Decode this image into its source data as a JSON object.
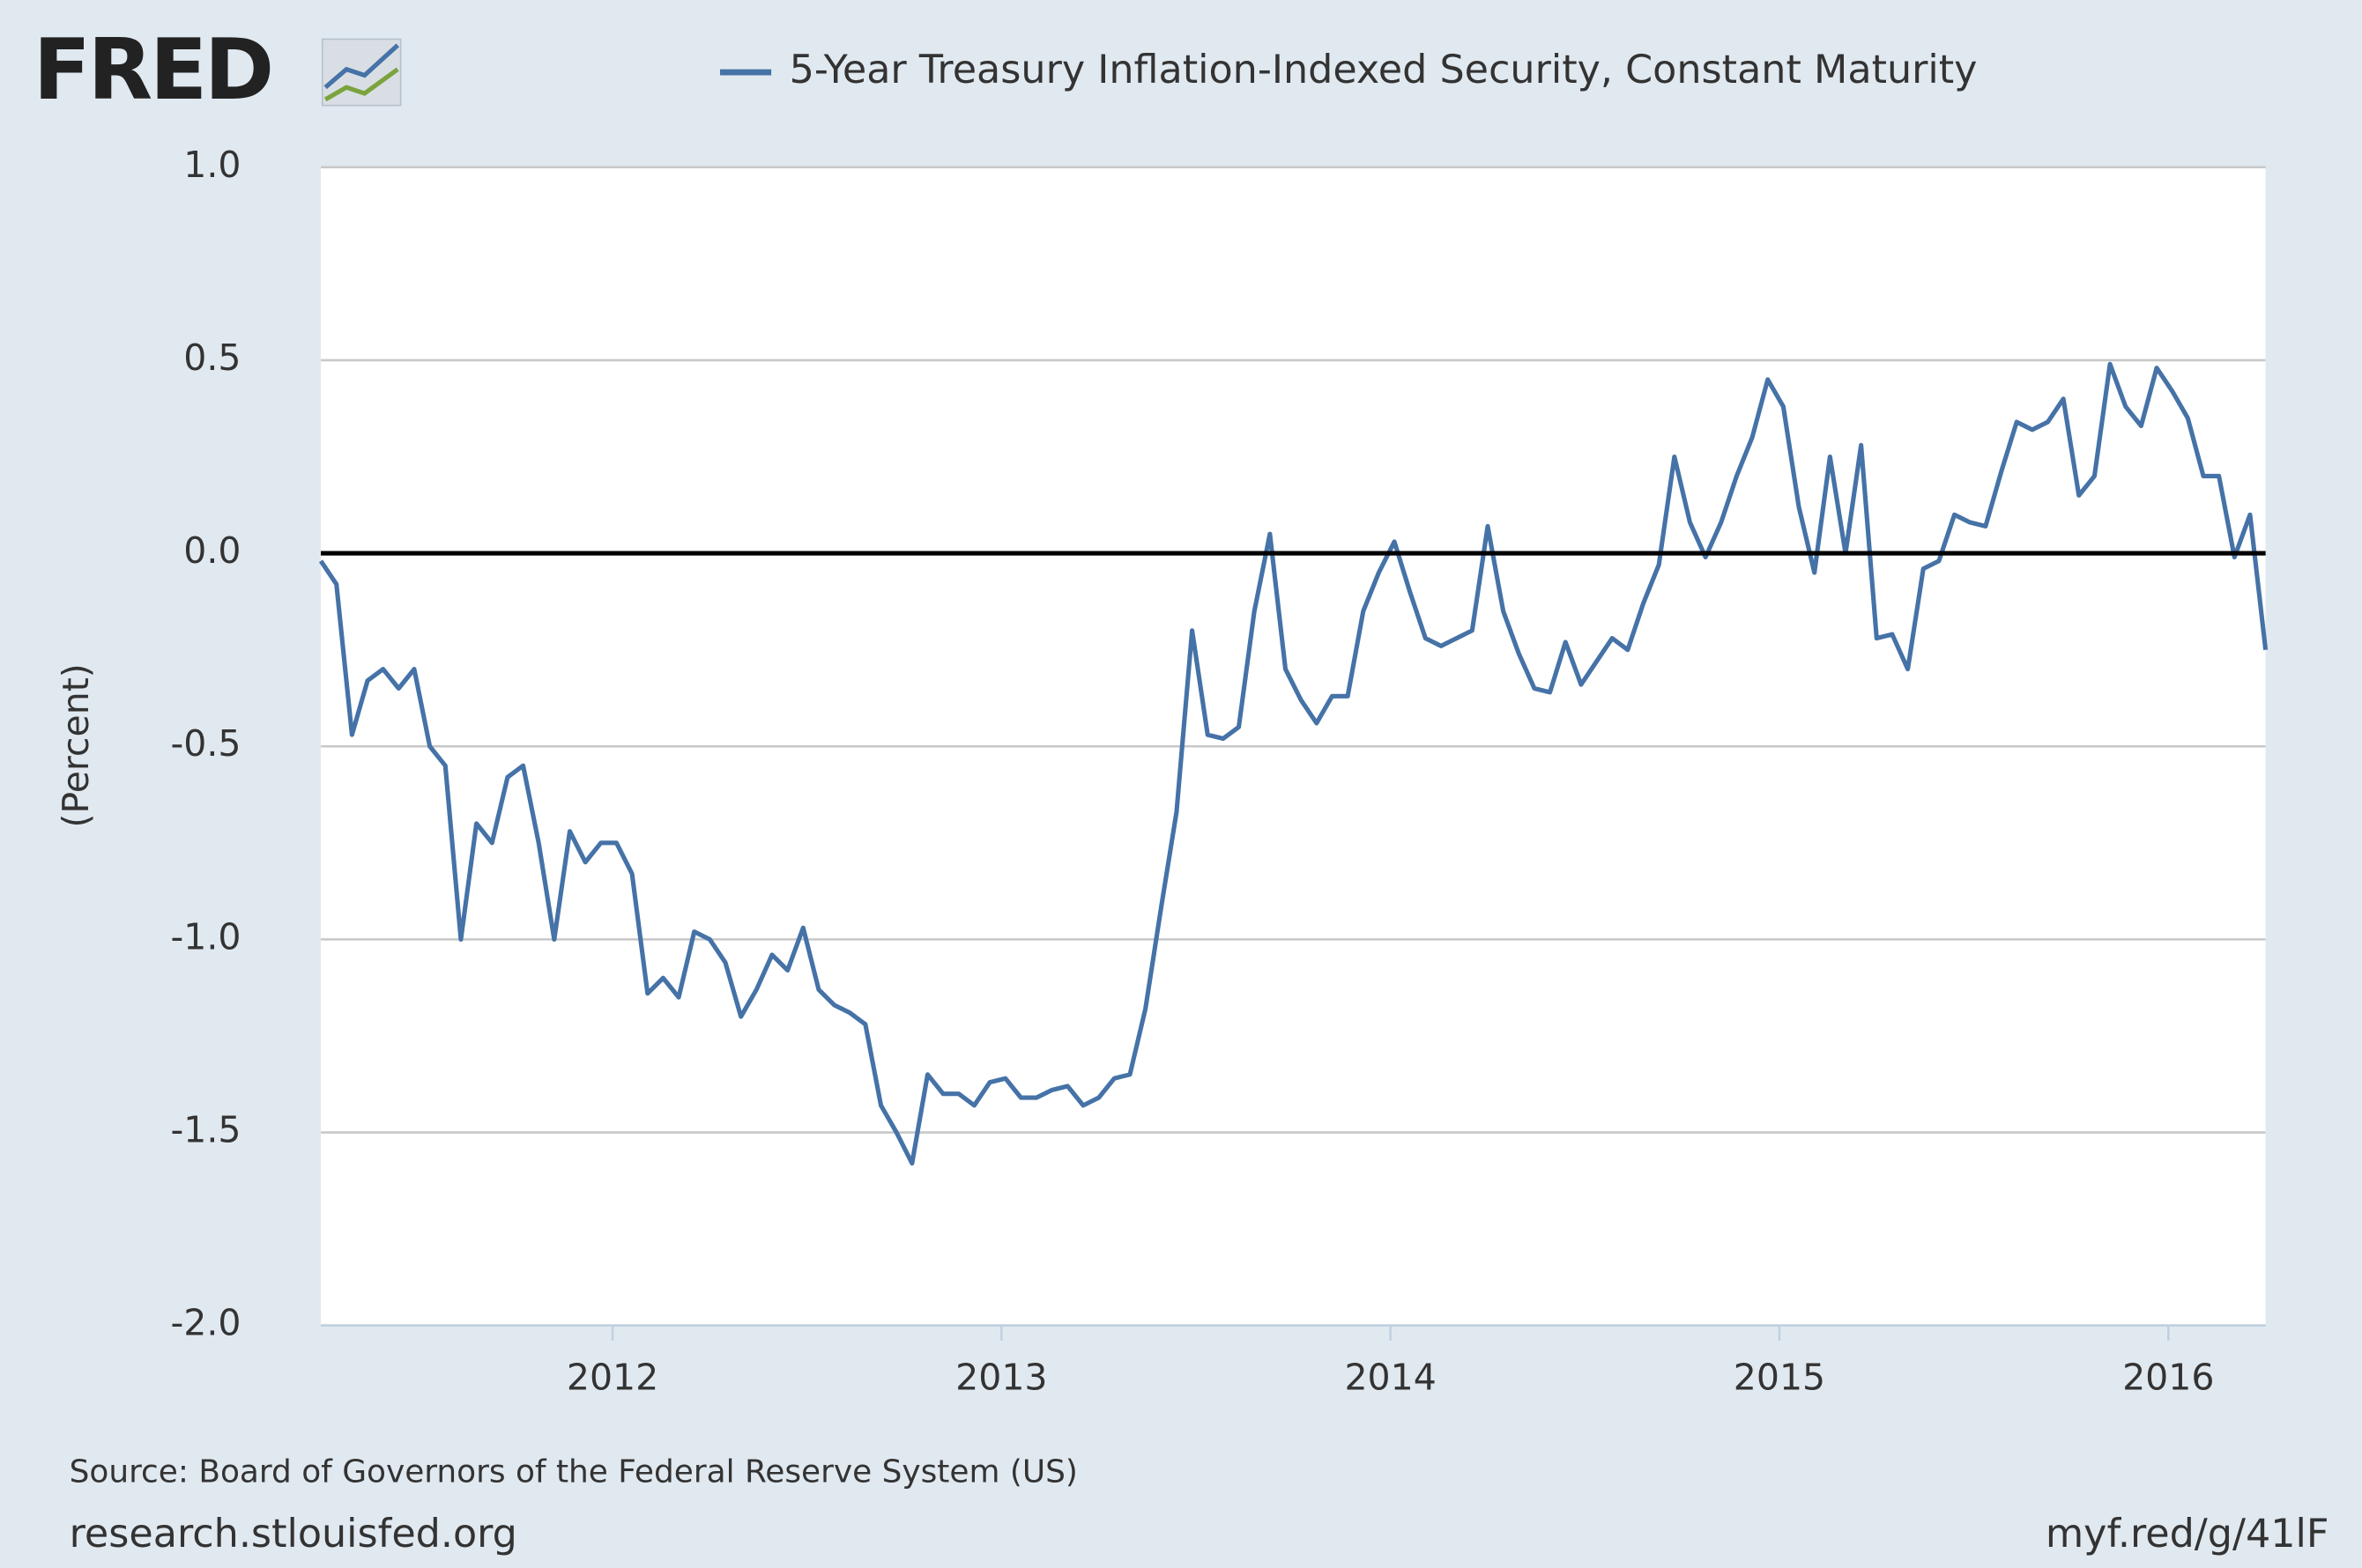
{
  "chart_data": {
    "type": "line",
    "logo": "FRED",
    "ylabel": "(Percent)",
    "source": "Source: Board of Governors of the Federal Reserve System (US)",
    "site": "research.stlouisfed.org",
    "short_link": "myf.red/g/41lF",
    "xlim": [
      2011.25,
      2016.25
    ],
    "xticks": [
      2012,
      2013,
      2014,
      2015,
      2016
    ],
    "ylim": [
      -2.0,
      1.0
    ],
    "yticks": [
      {
        "value": -2.0,
        "label": "-2.0"
      },
      {
        "value": -1.5,
        "label": "-1.5"
      },
      {
        "value": -1.0,
        "label": "-1.0"
      },
      {
        "value": -0.5,
        "label": "-0.5"
      },
      {
        "value": 0.0,
        "label": "0.0"
      },
      {
        "value": 0.5,
        "label": "0.5"
      },
      {
        "value": 1.0,
        "label": "1.0"
      }
    ],
    "grid": true,
    "zero_line": true,
    "legend": "top",
    "x": [
      2011.25,
      2011.29,
      2011.33,
      2011.37,
      2011.41,
      2011.45,
      2011.49,
      2011.53,
      2011.57,
      2011.61,
      2011.65,
      2011.69,
      2011.73,
      2011.77,
      2011.81,
      2011.85,
      2011.89,
      2011.93,
      2011.97,
      2012.01,
      2012.05,
      2012.09,
      2012.13,
      2012.17,
      2012.21,
      2012.25,
      2012.29,
      2012.33,
      2012.37,
      2012.41,
      2012.45,
      2012.49,
      2012.53,
      2012.57,
      2012.61,
      2012.65,
      2012.69,
      2012.73,
      2012.77,
      2012.81,
      2012.85,
      2012.89,
      2012.93,
      2012.97,
      2013.01,
      2013.05,
      2013.09,
      2013.13,
      2013.17,
      2013.21,
      2013.25,
      2013.29,
      2013.33,
      2013.37,
      2013.41,
      2013.45,
      2013.49,
      2013.53,
      2013.57,
      2013.61,
      2013.65,
      2013.69,
      2013.73,
      2013.77,
      2013.81,
      2013.85,
      2013.89,
      2013.93,
      2013.97,
      2014.01,
      2014.05,
      2014.09,
      2014.13,
      2014.17,
      2014.21,
      2014.25,
      2014.29,
      2014.33,
      2014.37,
      2014.41,
      2014.45,
      2014.49,
      2014.53,
      2014.57,
      2014.61,
      2014.65,
      2014.69,
      2014.73,
      2014.77,
      2014.81,
      2014.85,
      2014.89,
      2014.93,
      2014.97,
      2015.01,
      2015.05,
      2015.09,
      2015.13,
      2015.17,
      2015.21,
      2015.25,
      2015.29,
      2015.33,
      2015.37,
      2015.41,
      2015.45,
      2015.49,
      2015.53,
      2015.57,
      2015.61,
      2015.65,
      2015.69,
      2015.73,
      2015.77,
      2015.81,
      2015.85,
      2015.89,
      2015.93,
      2015.97,
      2016.01,
      2016.05,
      2016.09,
      2016.13,
      2016.17,
      2016.21,
      2016.25
    ],
    "series": [
      {
        "name": "5-Year Treasury Inflation-Indexed Security, Constant Maturity",
        "color": "#4572a7",
        "values": [
          -0.02,
          -0.08,
          -0.47,
          -0.33,
          -0.3,
          -0.35,
          -0.3,
          -0.5,
          -0.55,
          -1.0,
          -0.7,
          -0.75,
          -0.58,
          -0.55,
          -0.75,
          -1.0,
          -0.72,
          -0.8,
          -0.75,
          -0.75,
          -0.83,
          -1.14,
          -1.1,
          -1.15,
          -0.98,
          -1.0,
          -1.06,
          -1.2,
          -1.13,
          -1.04,
          -1.08,
          -0.97,
          -1.13,
          -1.17,
          -1.19,
          -1.22,
          -1.43,
          -1.5,
          -1.58,
          -1.35,
          -1.4,
          -1.4,
          -1.43,
          -1.37,
          -1.36,
          -1.41,
          -1.41,
          -1.39,
          -1.38,
          -1.43,
          -1.41,
          -1.36,
          -1.35,
          -1.18,
          -0.92,
          -0.67,
          -0.2,
          -0.47,
          -0.48,
          -0.45,
          -0.15,
          0.05,
          -0.3,
          -0.38,
          -0.44,
          -0.37,
          -0.37,
          -0.15,
          -0.05,
          0.03,
          -0.1,
          -0.22,
          -0.24,
          -0.22,
          -0.2,
          0.07,
          -0.15,
          -0.26,
          -0.35,
          -0.36,
          -0.23,
          -0.34,
          -0.28,
          -0.22,
          -0.25,
          -0.13,
          -0.03,
          0.25,
          0.08,
          -0.01,
          0.08,
          0.2,
          0.3,
          0.45,
          0.38,
          0.12,
          -0.05,
          0.25,
          0.0,
          0.28,
          -0.22,
          -0.21,
          -0.3,
          -0.04,
          -0.02,
          0.1,
          0.08,
          0.07,
          0.21,
          0.34,
          0.32,
          0.34,
          0.4,
          0.15,
          0.2,
          0.49,
          0.38,
          0.33,
          0.48,
          0.42,
          0.35,
          0.2,
          0.2,
          -0.01,
          0.1,
          -0.25
        ]
      }
    ]
  }
}
